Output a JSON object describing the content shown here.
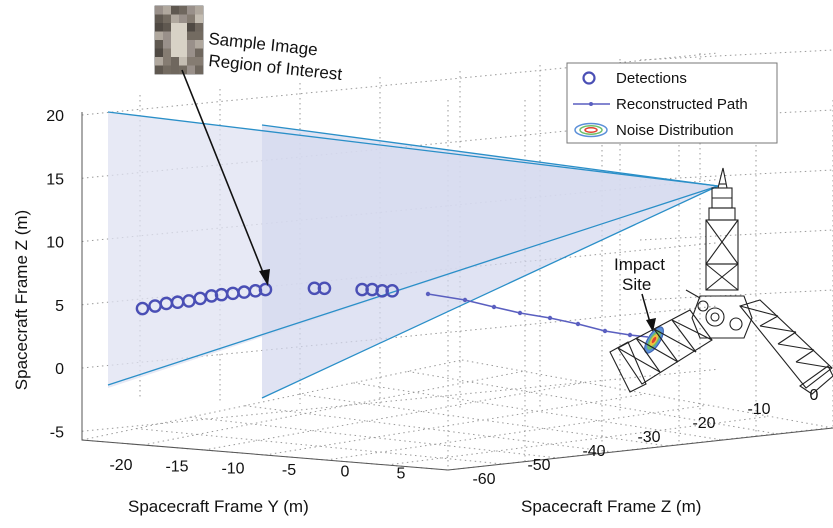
{
  "chart_data": {
    "type": "scatter",
    "title": "",
    "xlabel": "Spacecraft Frame Y (m)",
    "ylabel": "Spacecraft Frame Z (m)",
    "depth_label": "Spacecraft Frame Z (m)",
    "y_ticks": [
      "-20",
      "-15",
      "-10",
      "-5",
      "0",
      "5"
    ],
    "z_ticks": [
      "-5",
      "0",
      "5",
      "10",
      "15",
      "20"
    ],
    "depth_ticks": [
      "-60",
      "-50",
      "-40",
      "-30",
      "-20",
      "-10",
      "0"
    ],
    "grid": true,
    "legend_position": "top-right",
    "legend": [
      {
        "label": "Detections",
        "marker": "circle"
      },
      {
        "label": "Reconstructed Path",
        "marker": "line-dot"
      },
      {
        "label": "Noise Distribution",
        "marker": "ellipses"
      }
    ],
    "annotations": {
      "sample_line1": "Sample Image",
      "sample_line2": "Region of Interest",
      "impact_line1": "Impact",
      "impact_line2": "Site"
    },
    "detections": [
      {
        "y": -15.5,
        "z": 4.7
      },
      {
        "y": -14.5,
        "z": 4.9
      },
      {
        "y": -13.6,
        "z": 5.1
      },
      {
        "y": -12.7,
        "z": 5.2
      },
      {
        "y": -11.8,
        "z": 5.3
      },
      {
        "y": -10.9,
        "z": 5.5
      },
      {
        "y": -10.0,
        "z": 5.7
      },
      {
        "y": -9.2,
        "z": 5.8
      },
      {
        "y": -8.3,
        "z": 5.9
      },
      {
        "y": -7.4,
        "z": 6.0
      },
      {
        "y": -6.5,
        "z": 6.1
      },
      {
        "y": -5.7,
        "z": 6.2
      },
      {
        "y": -1.8,
        "z": 6.3
      },
      {
        "y": -1.0,
        "z": 6.3
      },
      {
        "y": 2.0,
        "z": 6.2
      },
      {
        "y": 2.8,
        "z": 6.2
      },
      {
        "y": 3.6,
        "z": 6.1
      },
      {
        "y": 4.4,
        "z": 6.1
      }
    ],
    "colors": {
      "detection": "#4a4fb5",
      "path": "#5a5fc0",
      "fov": "#2a8fc8",
      "fov_fill": "#d9dcf0"
    }
  }
}
